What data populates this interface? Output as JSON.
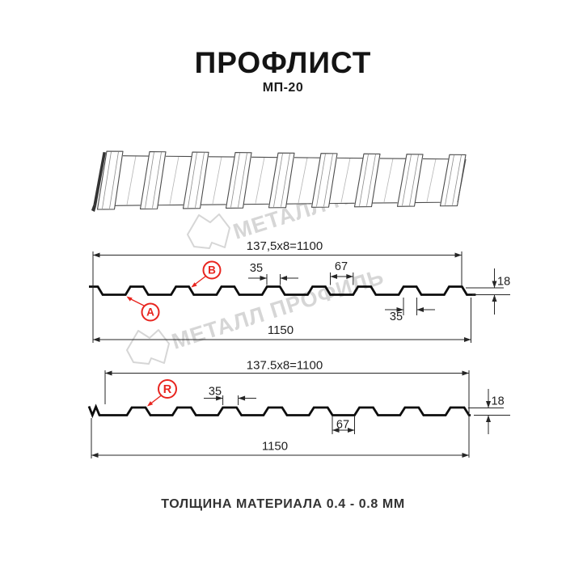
{
  "title": "ПРОФЛИСТ",
  "subtitle": "МП-20",
  "footer": "ТОЛЩИНА МАТЕРИАЛА 0.4 - 0.8 ММ",
  "watermark": {
    "brand": "МЕТАЛЛ ПРОФИЛЬ"
  },
  "colors": {
    "accent_red": "#e8251f",
    "line": "#262626",
    "profile": "#0d0d0d",
    "watermark": "#d6d6d6"
  },
  "profile_top": {
    "working_width": "137,5x8=1100",
    "overall_width": "1150",
    "rib_width": "35",
    "flute_width": "67",
    "height": "18",
    "bottom_rib_width": "35",
    "label_a": "A",
    "label_b": "B"
  },
  "profile_bottom": {
    "working_width": "137.5x8=1100",
    "overall_width": "1150",
    "rib_width": "35",
    "flute_width": "67",
    "height": "18",
    "label_r": "R"
  }
}
